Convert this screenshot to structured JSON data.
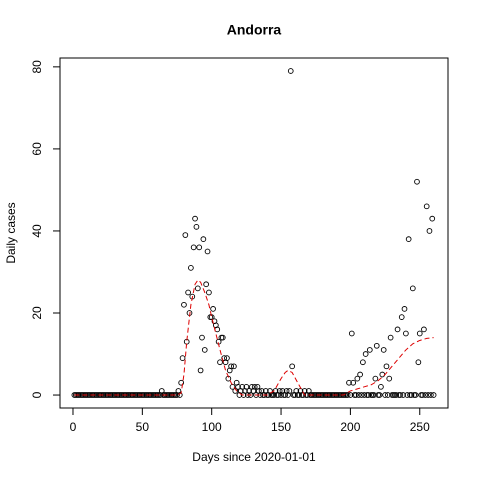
{
  "chart_data": {
    "type": "scatter",
    "title": "Andorra",
    "xlabel": "Days since 2020-01-01",
    "ylabel": "Daily cases",
    "xlim": [
      -9.36,
      270.36
    ],
    "ylim": [
      -3.16,
      82.16
    ],
    "xticks": [
      0,
      50,
      100,
      150,
      200,
      250
    ],
    "yticks": [
      0,
      20,
      40,
      60,
      80
    ],
    "color": "#000000",
    "x": [
      1,
      2,
      3,
      4,
      5,
      6,
      7,
      8,
      9,
      10,
      11,
      12,
      13,
      14,
      15,
      16,
      17,
      18,
      19,
      20,
      21,
      22,
      23,
      24,
      25,
      26,
      27,
      28,
      29,
      30,
      31,
      32,
      33,
      34,
      35,
      36,
      37,
      38,
      39,
      40,
      41,
      42,
      43,
      44,
      45,
      46,
      47,
      48,
      49,
      50,
      51,
      52,
      53,
      54,
      55,
      56,
      57,
      58,
      59,
      60,
      61,
      62,
      63,
      64,
      65,
      66,
      67,
      68,
      69,
      70,
      71,
      72,
      73,
      74,
      75,
      76,
      77,
      78,
      79,
      80,
      81,
      82,
      83,
      84,
      85,
      86,
      87,
      88,
      89,
      90,
      91,
      92,
      93,
      94,
      95,
      96,
      97,
      98,
      99,
      100,
      101,
      102,
      103,
      104,
      105,
      106,
      107,
      108,
      109,
      110,
      111,
      112,
      113,
      114,
      115,
      116,
      117,
      118,
      119,
      120,
      121,
      122,
      123,
      124,
      125,
      126,
      127,
      128,
      129,
      130,
      131,
      132,
      133,
      134,
      135,
      136,
      137,
      138,
      139,
      140,
      141,
      142,
      143,
      144,
      145,
      146,
      147,
      148,
      149,
      150,
      151,
      152,
      153,
      154,
      155,
      156,
      157,
      158,
      159,
      160,
      161,
      162,
      163,
      164,
      165,
      166,
      167,
      168,
      169,
      170,
      171,
      172,
      173,
      174,
      175,
      176,
      177,
      178,
      179,
      180,
      181,
      182,
      183,
      184,
      185,
      186,
      187,
      188,
      189,
      190,
      191,
      192,
      193,
      194,
      195,
      196,
      197,
      198,
      199,
      200,
      201,
      202,
      203,
      204,
      205,
      206,
      207,
      208,
      209,
      210,
      211,
      212,
      213,
      214,
      215,
      216,
      217,
      218,
      219,
      220,
      221,
      222,
      223,
      224,
      225,
      226,
      227,
      228,
      229,
      230,
      231,
      232,
      233,
      234,
      235,
      236,
      237,
      238,
      239,
      240,
      241,
      242,
      243,
      244,
      245,
      246,
      247,
      248,
      249,
      250,
      251,
      252,
      253,
      254,
      255,
      256,
      257,
      258,
      259,
      260
    ],
    "values": [
      0,
      0,
      0,
      0,
      0,
      0,
      0,
      0,
      0,
      0,
      0,
      0,
      0,
      0,
      0,
      0,
      0,
      0,
      0,
      0,
      0,
      0,
      0,
      0,
      0,
      0,
      0,
      0,
      0,
      0,
      0,
      0,
      0,
      0,
      0,
      0,
      0,
      0,
      0,
      0,
      0,
      0,
      0,
      0,
      0,
      0,
      0,
      0,
      0,
      0,
      0,
      0,
      0,
      0,
      0,
      0,
      0,
      0,
      0,
      0,
      0,
      0,
      0,
      1,
      0,
      0,
      0,
      0,
      0,
      0,
      0,
      0,
      0,
      0,
      0,
      1,
      0,
      3,
      9,
      22,
      39,
      13,
      25,
      20,
      31,
      24,
      36,
      43,
      41,
      26,
      36,
      6,
      14,
      38,
      11,
      27,
      35,
      25,
      19,
      19,
      21,
      18,
      17,
      16,
      13,
      8,
      14,
      14,
      9,
      8,
      9,
      4,
      6,
      7,
      2,
      7,
      1,
      3,
      2,
      0,
      1,
      2,
      0,
      1,
      2,
      0,
      1,
      0,
      2,
      1,
      2,
      0,
      2,
      1,
      0,
      1,
      0,
      0,
      1,
      0,
      0,
      1,
      0,
      0,
      0,
      1,
      0,
      0,
      1,
      0,
      1,
      0,
      0,
      1,
      0,
      1,
      79,
      7,
      0,
      0,
      1,
      0,
      0,
      1,
      0,
      0,
      1,
      0,
      0,
      1,
      0,
      0,
      0,
      0,
      0,
      0,
      0,
      0,
      0,
      0,
      0,
      0,
      0,
      0,
      0,
      0,
      0,
      0,
      0,
      0,
      0,
      0,
      0,
      0,
      0,
      0,
      0,
      0,
      3,
      0,
      15,
      3,
      0,
      0,
      4,
      0,
      5,
      0,
      8,
      0,
      10,
      0,
      0,
      11,
      0,
      0,
      0,
      4,
      12,
      0,
      0,
      2,
      5,
      11,
      0,
      7,
      0,
      4,
      14,
      0,
      0,
      0,
      0,
      16,
      0,
      0,
      19,
      0,
      21,
      15,
      0,
      38,
      0,
      0,
      26,
      0,
      0,
      52,
      8,
      15,
      0,
      0,
      16,
      0,
      46,
      0,
      40,
      0,
      43,
      0
    ],
    "trend": {
      "color": "#dd0000",
      "x": [
        1,
        70,
        75,
        78,
        80,
        82,
        85,
        88,
        90,
        92,
        95,
        98,
        100,
        103,
        106,
        110,
        114,
        118,
        122,
        130,
        140,
        145,
        150,
        153,
        155,
        158,
        162,
        167,
        175,
        190,
        195,
        200,
        205,
        210,
        215,
        220,
        225,
        230,
        235,
        240,
        245,
        250,
        255,
        260
      ],
      "values": [
        0,
        0,
        0,
        0.5,
        5,
        13,
        22,
        27,
        28,
        27.5,
        25,
        22,
        19,
        15,
        11,
        6,
        3,
        1,
        0,
        0,
        0,
        1,
        4,
        5.5,
        6,
        5.5,
        3,
        0,
        0,
        0,
        0,
        1,
        1.5,
        2,
        2.5,
        3.5,
        5,
        7,
        9,
        11,
        12.5,
        13.3,
        13.8,
        14
      ]
    }
  }
}
